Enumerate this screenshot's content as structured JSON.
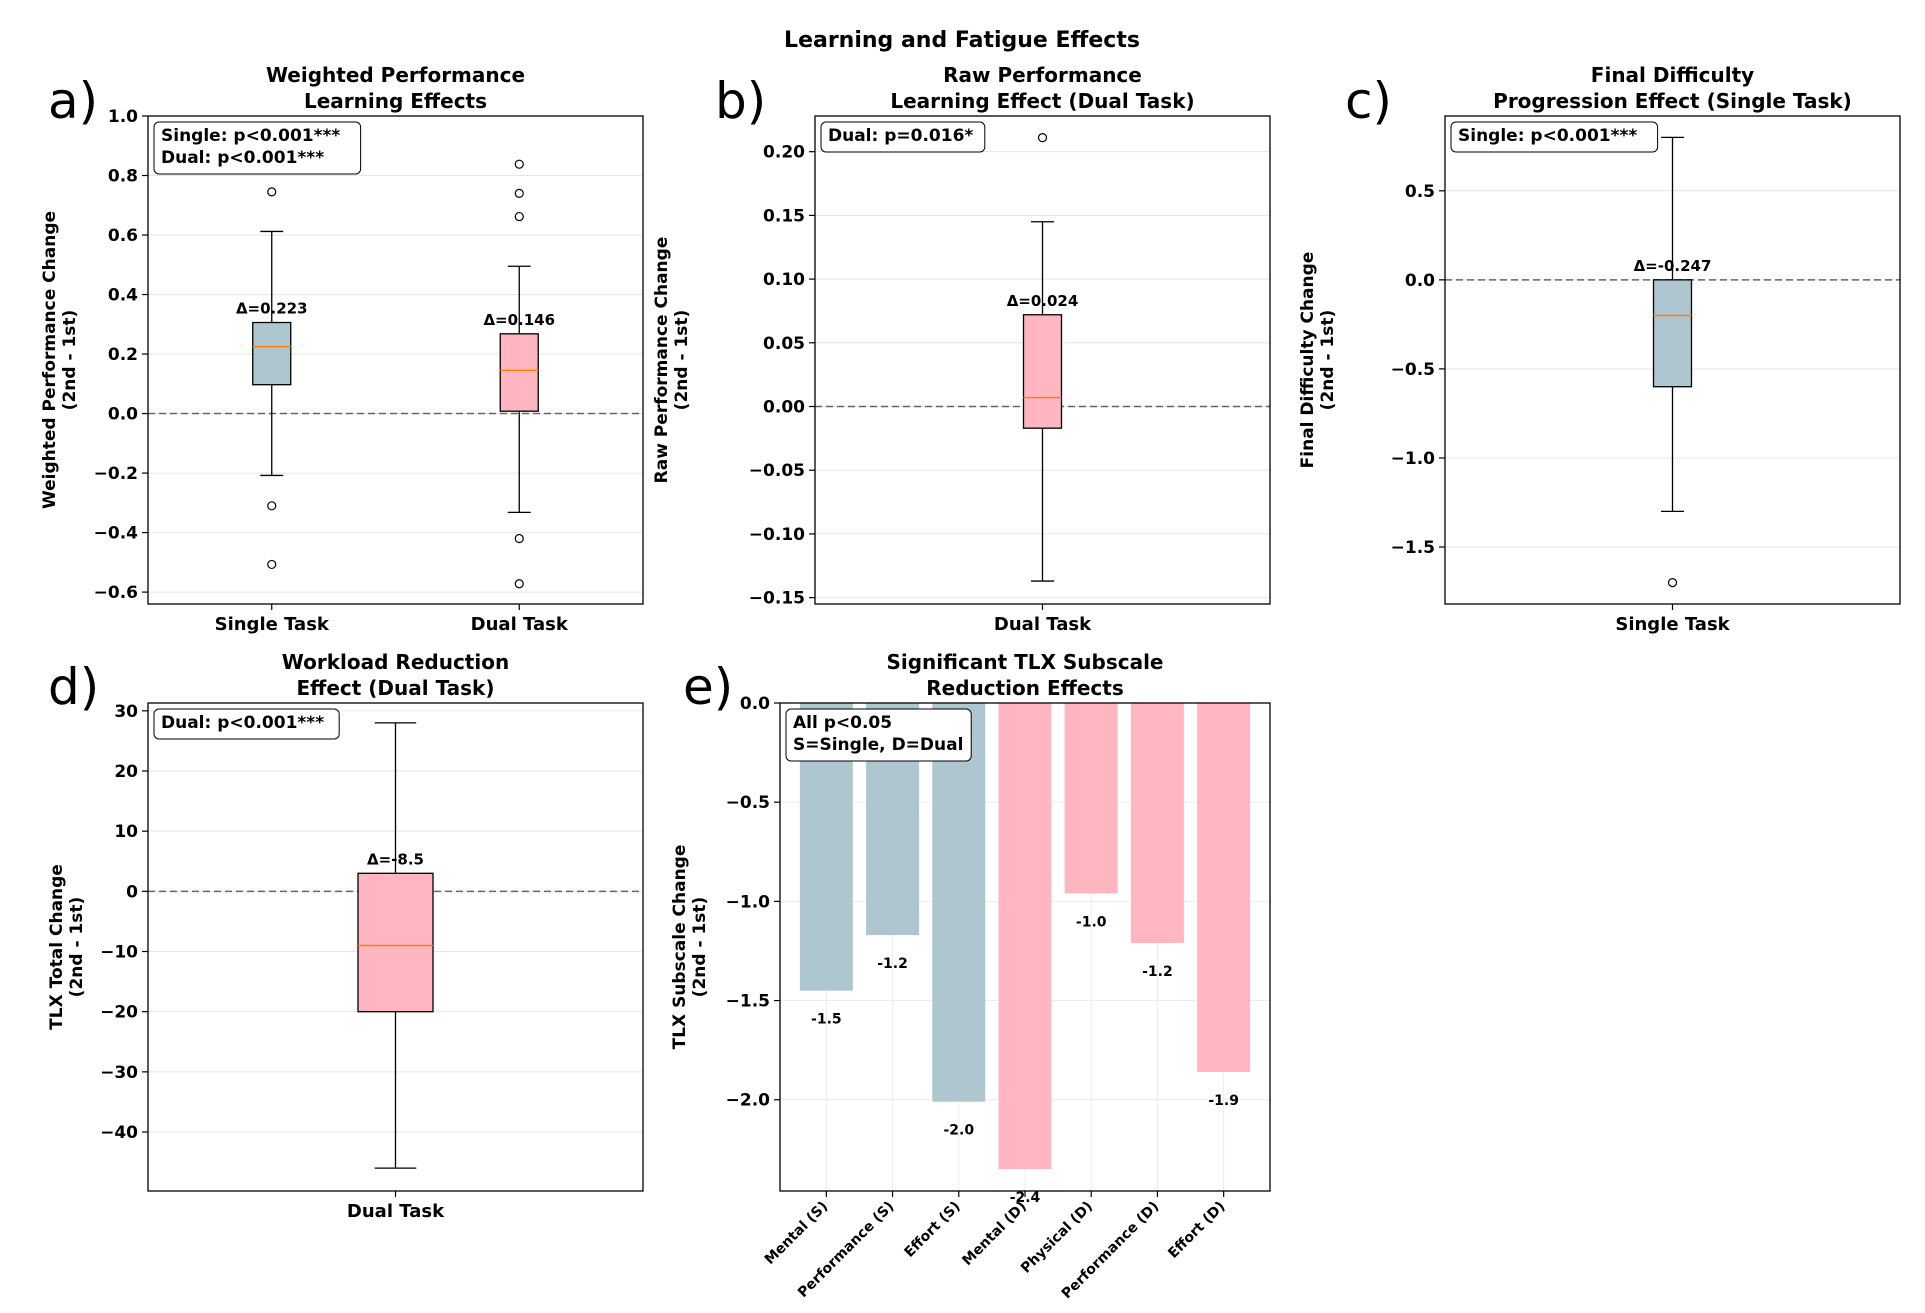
{
  "figure_title": "Learning and Fatigue Effects",
  "chart_data": [
    {
      "panel": "a)",
      "type": "box",
      "title": [
        "Weighted Performance",
        "Learning Effects"
      ],
      "ylabel": [
        "Weighted Performance Change",
        "(2nd - 1st)"
      ],
      "ylim": [
        -0.64,
        1.0
      ],
      "yticks": [
        -0.6,
        -0.4,
        -0.2,
        0.0,
        0.2,
        0.4,
        0.6,
        0.8,
        1.0
      ],
      "ytick_labels": [
        "−0.6",
        "−0.4",
        "−0.2",
        "0.0",
        "0.2",
        "0.4",
        "0.6",
        "0.8",
        "1.0"
      ],
      "annotation": [
        "Single: p<0.001***",
        "Dual: p<0.001***"
      ],
      "boxes": [
        {
          "name": "Single Task",
          "color": "#aec6cf",
          "q1": 0.097,
          "median": 0.225,
          "q3": 0.306,
          "whisker_low": -0.208,
          "whisker_high": 0.612,
          "outliers": [
            0.745,
            -0.31,
            -0.507
          ],
          "delta": "Δ=0.223"
        },
        {
          "name": "Dual Task",
          "color": "#ffb6c1",
          "q1": 0.008,
          "median": 0.145,
          "q3": 0.268,
          "whisker_low": -0.332,
          "whisker_high": 0.495,
          "outliers": [
            0.838,
            0.74,
            0.662,
            -0.42,
            -0.572
          ],
          "delta": "Δ=0.146"
        }
      ]
    },
    {
      "panel": "b)",
      "type": "box",
      "title": [
        "Raw Performance",
        "Learning Effect (Dual Task)"
      ],
      "ylabel": [
        "Raw Performance Change",
        "(2nd - 1st)"
      ],
      "ylim": [
        -0.155,
        0.228
      ],
      "yticks": [
        -0.15,
        -0.1,
        -0.05,
        0.0,
        0.05,
        0.1,
        0.15,
        0.2
      ],
      "ytick_labels": [
        "−0.15",
        "−0.10",
        "−0.05",
        "0.00",
        "0.05",
        "0.10",
        "0.15",
        "0.20"
      ],
      "annotation": [
        "Dual: p=0.016*"
      ],
      "boxes": [
        {
          "name": "Dual Task",
          "color": "#ffb6c1",
          "q1": -0.017,
          "median": 0.007,
          "q3": 0.072,
          "whisker_low": -0.137,
          "whisker_high": 0.145,
          "outliers": [
            0.211
          ],
          "delta": "Δ=0.024"
        }
      ]
    },
    {
      "panel": "c)",
      "type": "box",
      "title": [
        "Final Difficulty",
        "Progression Effect (Single Task)"
      ],
      "ylabel": [
        "Final Difficulty Change",
        "(2nd - 1st)"
      ],
      "ylim": [
        -1.82,
        0.92
      ],
      "yticks": [
        -1.5,
        -1.0,
        -0.5,
        0.0,
        0.5
      ],
      "ytick_labels": [
        "−1.5",
        "−1.0",
        "−0.5",
        "0.0",
        "0.5"
      ],
      "annotation": [
        "Single: p<0.001***"
      ],
      "boxes": [
        {
          "name": "Single Task",
          "color": "#aec6cf",
          "q1": -0.6,
          "median": -0.2,
          "q3": 0.0,
          "whisker_low": -1.3,
          "whisker_high": 0.8,
          "outliers": [
            -1.7
          ],
          "delta": "Δ=-0.247"
        }
      ]
    },
    {
      "panel": "d)",
      "type": "box",
      "title": [
        "Workload Reduction",
        "Effect (Dual Task)"
      ],
      "ylabel": [
        "TLX Total Change",
        "(2nd - 1st)"
      ],
      "ylim": [
        -49.8,
        31.3
      ],
      "yticks": [
        -40,
        -30,
        -20,
        -10,
        0,
        10,
        20,
        30
      ],
      "ytick_labels": [
        "−40",
        "−30",
        "−20",
        "−10",
        "0",
        "10",
        "20",
        "30"
      ],
      "annotation": [
        "Dual: p<0.001***"
      ],
      "boxes": [
        {
          "name": "Dual Task",
          "color": "#ffb6c1",
          "q1": -20,
          "median": -9,
          "q3": 3,
          "whisker_low": -46,
          "whisker_high": 28,
          "outliers": [],
          "delta": "Δ=-8.5"
        }
      ]
    },
    {
      "panel": "e)",
      "type": "bar",
      "title": [
        "Significant TLX Subscale",
        "Reduction Effects"
      ],
      "ylabel": [
        "TLX Subscale Change",
        "(2nd - 1st)"
      ],
      "ylim": [
        -2.46,
        0.0
      ],
      "yticks": [
        -2.0,
        -1.5,
        -1.0,
        -0.5,
        0.0
      ],
      "ytick_labels": [
        "−2.0",
        "−1.5",
        "−1.0",
        "−0.5",
        "0.0"
      ],
      "annotation": [
        "All p<0.05",
        "S=Single, D=Dual"
      ],
      "categories": [
        "Mental (S)",
        "Performance (S)",
        "Effort (S)",
        "Mental (D)",
        "Physical (D)",
        "Performance (D)",
        "Effort (D)"
      ],
      "values": [
        -1.45,
        -1.17,
        -2.01,
        -2.35,
        -0.96,
        -1.21,
        -1.86
      ],
      "value_labels": [
        "-1.5",
        "-1.2",
        "-2.0",
        "-2.4",
        "-1.0",
        "-1.2",
        "-1.9"
      ],
      "colors": [
        "#aec6cf",
        "#aec6cf",
        "#aec6cf",
        "#ffb6c1",
        "#ffb6c1",
        "#ffb6c1",
        "#ffb6c1"
      ]
    }
  ]
}
